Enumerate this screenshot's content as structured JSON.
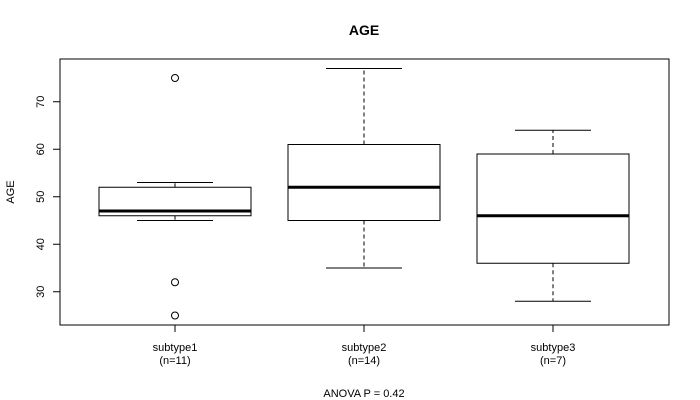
{
  "chart_data": {
    "type": "boxplot",
    "title": "AGE",
    "xlabel": "",
    "ylabel": "AGE",
    "ylim": [
      23,
      79
    ],
    "yticks": [
      30,
      40,
      50,
      60,
      70
    ],
    "grid": false,
    "footnote": "ANOVA P = 0.42",
    "categories": [
      {
        "name": "subtype1",
        "n_label": "(n=11)",
        "whisker_low": 45,
        "q1": 46,
        "median": 47,
        "q3": 52,
        "whisker_high": 53,
        "outliers": [
          75,
          32,
          25
        ]
      },
      {
        "name": "subtype2",
        "n_label": "(n=14)",
        "whisker_low": 35,
        "q1": 45,
        "median": 52,
        "q3": 61,
        "whisker_high": 77,
        "outliers": []
      },
      {
        "name": "subtype3",
        "n_label": "(n=7)",
        "whisker_low": 28,
        "q1": 36,
        "median": 46,
        "q3": 59,
        "whisker_high": 64,
        "outliers": []
      }
    ]
  }
}
